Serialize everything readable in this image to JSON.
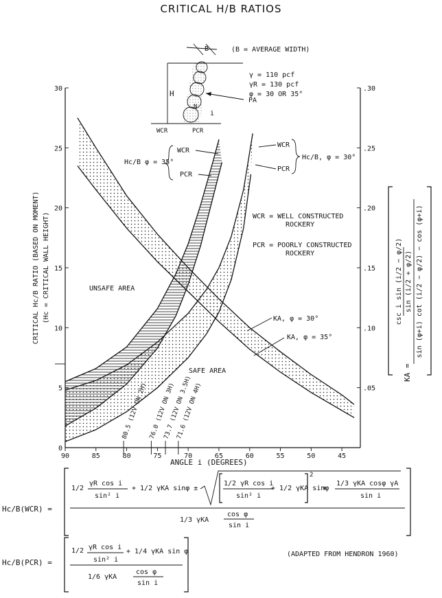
{
  "title": "CRITICAL H/B RATIOS",
  "sketch": {
    "b_label": "B",
    "b_note": "(B = AVERAGE WIDTH)",
    "h_label": "H",
    "gamma": "γ = 110 pcf",
    "gamma_r": "γR = 130 pcf",
    "phi": "φ = 30 OR 35°",
    "pa": "PA",
    "wcr": "WCR",
    "pcr": "PCR",
    "n_label": "N",
    "i_label": "i"
  },
  "chart_data": {
    "type": "line",
    "title": "CRITICAL H/B RATIOS",
    "xlabel": "ANGLE i (DEGREES)",
    "ylabel": "CRITICAL Hc/B RATIO (BASED ON MOMENT)",
    "ylabel2": "(Hc = CRITICAL WALL HEIGHT)",
    "y2label": "KA =",
    "xlim": [
      90,
      42
    ],
    "ylim": [
      0,
      30
    ],
    "y2lim": [
      0,
      0.3
    ],
    "x_ticks": [
      90,
      85,
      80,
      75,
      70,
      65,
      60,
      55,
      50,
      45
    ],
    "y_ticks": [
      0,
      5,
      10,
      15,
      20,
      25,
      30
    ],
    "y2_ticks": [
      ".05",
      ".10",
      ".15",
      ".20",
      ".25",
      ".30"
    ],
    "y_tick_labels": [
      "0",
      "5",
      "10",
      "15",
      "20",
      "25",
      "30"
    ],
    "series": [
      {
        "name": "Hc/B WCR, φ = 35°",
        "x": [
          90,
          85,
          80,
          75,
          72,
          70,
          68,
          66,
          65
        ],
        "y": [
          5.5,
          6.6,
          8.4,
          11.6,
          14.5,
          17.0,
          20.2,
          23.8,
          25.7
        ]
      },
      {
        "name": "Hc/B PCR, φ = 35°",
        "x": [
          90,
          85,
          80,
          75,
          72,
          70,
          68,
          66,
          64.5
        ],
        "y": [
          1.8,
          3.3,
          5.3,
          8.3,
          11.0,
          13.6,
          16.8,
          20.8,
          23.8
        ]
      },
      {
        "name": "Hc/B WCR, φ = 30°",
        "x": [
          90,
          85,
          80,
          75,
          70,
          67,
          65,
          63,
          61,
          59.5
        ],
        "y": [
          4.8,
          5.6,
          6.9,
          8.8,
          11.2,
          13.2,
          15.0,
          17.6,
          21.5,
          26.2
        ]
      },
      {
        "name": "Hc/B PCR, φ = 30°",
        "x": [
          90,
          85,
          80,
          75,
          70,
          67,
          65,
          63,
          61,
          59.8
        ],
        "y": [
          0.5,
          1.5,
          3.0,
          5.0,
          7.5,
          9.5,
          11.3,
          14.0,
          18.3,
          22.8
        ]
      },
      {
        "name": "KA, φ = 30°",
        "x": [
          88,
          85,
          80,
          75,
          70,
          65,
          60,
          55,
          50,
          45,
          43
        ],
        "y": [
          0.275,
          0.25,
          0.21,
          0.178,
          0.15,
          0.124,
          0.1,
          0.08,
          0.061,
          0.044,
          0.036
        ]
      },
      {
        "name": "KA, φ = 35°",
        "x": [
          88,
          85,
          80,
          75,
          70,
          65,
          60,
          55,
          50,
          45,
          43
        ],
        "y": [
          0.235,
          0.215,
          0.183,
          0.155,
          0.13,
          0.105,
          0.082,
          0.063,
          0.046,
          0.031,
          0.025
        ]
      }
    ],
    "annotations": [
      {
        "text": "80.5 (12V ON 2H)",
        "x": 80.5
      },
      {
        "text": "76.0 (12V ON 3H)",
        "x": 76.0
      },
      {
        "text": "73.7 (12V ON 3.5H)",
        "x": 73.7
      },
      {
        "text": "71.6 (12V ON 4H)",
        "x": 71.6
      }
    ],
    "labels": {
      "unsafe": "UNSAFE AREA",
      "safe": "SAFE AREA",
      "wcr_def_1": "WCR = WELL CONSTRUCTED",
      "wcr_def_2": "ROCKERY",
      "pcr_def_1": "PCR = POORLY CONSTRUCTED",
      "pcr_def_2": "ROCKERY",
      "hcb35": "Hc/B φ = 35°",
      "hcb30": "Hc/B, φ = 30°",
      "wcr": "WCR",
      "pcr": "PCR",
      "ka30": "KA, φ = 30°",
      "ka35": "KA, φ = 35°"
    }
  },
  "ka_formula": {
    "top": "csc i sin (i/2 − φ/2)",
    "mid": "sin (i/2 + φ/2)",
    "bottom": "sin (φ+i) cot (i/2 − φ/2) − cos (φ+i)"
  },
  "formulas": {
    "wcr_lhs": "Hc/B(WCR) =",
    "wcr_num_a1": "1/2",
    "wcr_num_a2": "γR cos i",
    "wcr_num_a3": "sin² i",
    "wcr_num_b": "+ 1/2 γKA sinφ ±",
    "wcr_rad_a1": "1/2 γR cos i",
    "wcr_rad_a2": "sin² i",
    "wcr_rad_b": "+ 1/2 γKA sinφ",
    "wcr_rad_c1": "1/3 γKA cosφ γA",
    "wcr_rad_c2": "sin i",
    "wcr_den_a": "1/3 γKA",
    "wcr_den_b1": "cos φ",
    "wcr_den_b2": "sin i",
    "pcr_lhs": "Hc/B(PCR) =",
    "pcr_num_a1": "1/2",
    "pcr_num_a2": "γR cos i",
    "pcr_num_a3": "sin² i",
    "pcr_num_b": "+ 1/4 γKA sin φ",
    "pcr_den_a": "1/6 γKA",
    "pcr_den_b1": "cos φ",
    "pcr_den_b2": "sin i",
    "source": "(ADAPTED FROM HENDRON 1960)"
  }
}
